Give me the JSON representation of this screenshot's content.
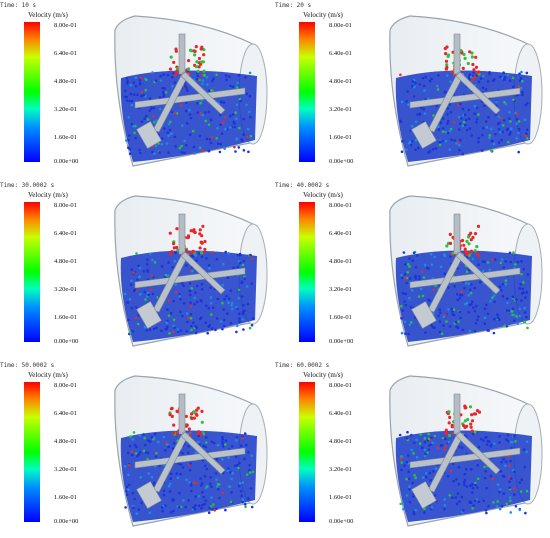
{
  "legend_title": "Velocity (m/s)",
  "ticks": [
    "8.00e-01",
    "6.40e-01",
    "4.80e-01",
    "3.20e-01",
    "1.60e-01",
    "0.00e+00"
  ],
  "colors": {
    "max": "#ff0000",
    "mid": "#00ff00",
    "min": "#0000ff"
  },
  "panels": [
    {
      "time": "Time: 10 s"
    },
    {
      "time": "Time: 20 s"
    },
    {
      "time": "Time: 30.0002 s"
    },
    {
      "time": "Time: 40.0002 s"
    },
    {
      "time": "Time: 50.0002 s"
    },
    {
      "time": "Time: 60.0002 s"
    }
  ]
}
